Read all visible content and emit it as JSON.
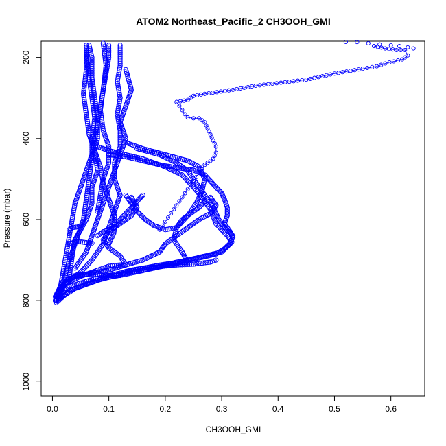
{
  "chart_data": {
    "type": "scatter",
    "title": "ATOM2 Northeast_Pacific_2 CH3OOH_GMI",
    "xlabel": "CH3OOH_GMI",
    "ylabel": "Pressure (mbar)",
    "xlim": [
      -0.02,
      0.66
    ],
    "ylim": [
      1035,
      160
    ],
    "y_reversed": true,
    "grid": false,
    "legend": "none",
    "marker": "open-circle",
    "color": "#0000ff",
    "x_ticks": [
      "0.0",
      "0.1",
      "0.2",
      "0.3",
      "0.4",
      "0.5",
      "0.6"
    ],
    "y_ticks": [
      "200",
      "400",
      "600",
      "800",
      "1000"
    ],
    "profiles": [
      {
        "points": [
          [
            0.005,
            800
          ],
          [
            0.03,
            740
          ],
          [
            0.035,
            690
          ],
          [
            0.04,
            650
          ],
          [
            0.06,
            600
          ],
          [
            0.07,
            560
          ],
          [
            0.07,
            520
          ],
          [
            0.08,
            480
          ],
          [
            0.075,
            430
          ],
          [
            0.08,
            400
          ],
          [
            0.08,
            350
          ],
          [
            0.075,
            300
          ],
          [
            0.07,
            250
          ],
          [
            0.07,
            200
          ],
          [
            0.065,
            170
          ]
        ]
      },
      {
        "points": [
          [
            0.005,
            790
          ],
          [
            0.02,
            750
          ],
          [
            0.03,
            700
          ],
          [
            0.045,
            640
          ],
          [
            0.055,
            600
          ],
          [
            0.06,
            550
          ],
          [
            0.065,
            500
          ],
          [
            0.07,
            450
          ],
          [
            0.07,
            400
          ],
          [
            0.075,
            350
          ],
          [
            0.07,
            300
          ],
          [
            0.065,
            250
          ],
          [
            0.06,
            200
          ],
          [
            0.06,
            170
          ]
        ]
      },
      {
        "points": [
          [
            0.006,
            795
          ],
          [
            0.015,
            760
          ],
          [
            0.02,
            720
          ],
          [
            0.025,
            680
          ],
          [
            0.03,
            640
          ],
          [
            0.035,
            600
          ],
          [
            0.04,
            560
          ],
          [
            0.05,
            520
          ],
          [
            0.06,
            480
          ],
          [
            0.07,
            440
          ],
          [
            0.075,
            400
          ],
          [
            0.08,
            360
          ],
          [
            0.085,
            320
          ],
          [
            0.09,
            280
          ],
          [
            0.095,
            240
          ],
          [
            0.1,
            200
          ],
          [
            0.1,
            170
          ]
        ]
      },
      {
        "points": [
          [
            0.006,
            800
          ],
          [
            0.02,
            760
          ],
          [
            0.05,
            730
          ],
          [
            0.07,
            700
          ],
          [
            0.09,
            660
          ],
          [
            0.1,
            620
          ],
          [
            0.11,
            580
          ],
          [
            0.12,
            540
          ],
          [
            0.11,
            500
          ],
          [
            0.11,
            460
          ],
          [
            0.12,
            420
          ],
          [
            0.12,
            380
          ],
          [
            0.115,
            340
          ],
          [
            0.12,
            300
          ],
          [
            0.115,
            260
          ],
          [
            0.12,
            220
          ],
          [
            0.12,
            170
          ]
        ]
      },
      {
        "points": [
          [
            0.007,
            805
          ],
          [
            0.03,
            775
          ],
          [
            0.06,
            760
          ],
          [
            0.09,
            745
          ],
          [
            0.13,
            735
          ],
          [
            0.18,
            720
          ],
          [
            0.22,
            705
          ],
          [
            0.26,
            695
          ],
          [
            0.29,
            685
          ],
          [
            0.305,
            672
          ],
          [
            0.318,
            655
          ],
          [
            0.31,
            640
          ],
          [
            0.29,
            610
          ],
          [
            0.28,
            575
          ],
          [
            0.265,
            545
          ],
          [
            0.25,
            520
          ],
          [
            0.23,
            490
          ],
          [
            0.2,
            470
          ],
          [
            0.16,
            450
          ],
          [
            0.13,
            440
          ],
          [
            0.1,
            430
          ],
          [
            0.08,
            420
          ]
        ]
      },
      {
        "points": [
          [
            0.007,
            800
          ],
          [
            0.04,
            770
          ],
          [
            0.08,
            750
          ],
          [
            0.12,
            735
          ],
          [
            0.17,
            722
          ],
          [
            0.21,
            712
          ],
          [
            0.24,
            700
          ],
          [
            0.27,
            690
          ],
          [
            0.3,
            680
          ],
          [
            0.315,
            660
          ],
          [
            0.32,
            640
          ],
          [
            0.305,
            620
          ],
          [
            0.295,
            600
          ],
          [
            0.285,
            570
          ],
          [
            0.27,
            540
          ],
          [
            0.255,
            510
          ],
          [
            0.24,
            480
          ],
          [
            0.22,
            460
          ],
          [
            0.19,
            440
          ],
          [
            0.15,
            425
          ]
        ]
      },
      {
        "points": [
          [
            0.006,
            795
          ],
          [
            0.03,
            765
          ],
          [
            0.07,
            748
          ],
          [
            0.12,
            732
          ],
          [
            0.16,
            720
          ],
          [
            0.2,
            710
          ],
          [
            0.24,
            705
          ],
          [
            0.23,
            680
          ],
          [
            0.215,
            650
          ],
          [
            0.22,
            620
          ],
          [
            0.24,
            590
          ],
          [
            0.255,
            560
          ],
          [
            0.265,
            530
          ],
          [
            0.27,
            500
          ],
          [
            0.26,
            470
          ],
          [
            0.24,
            455
          ],
          [
            0.2,
            440
          ],
          [
            0.16,
            425
          ],
          [
            0.13,
            410
          ]
        ]
      },
      {
        "points": [
          [
            0.006,
            790
          ],
          [
            0.02,
            760
          ],
          [
            0.05,
            740
          ],
          [
            0.08,
            725
          ],
          [
            0.1,
            715
          ],
          [
            0.12,
            712
          ],
          [
            0.13,
            712
          ],
          [
            0.12,
            690
          ],
          [
            0.1,
            670
          ],
          [
            0.09,
            650
          ],
          [
            0.1,
            630
          ],
          [
            0.12,
            610
          ],
          [
            0.14,
            590
          ],
          [
            0.15,
            570
          ],
          [
            0.14,
            545
          ]
        ]
      },
      {
        "points": [
          [
            0.006,
            790
          ],
          [
            0.03,
            745
          ],
          [
            0.06,
            735
          ],
          [
            0.1,
            725
          ],
          [
            0.13,
            712
          ],
          [
            0.16,
            700
          ],
          [
            0.19,
            680
          ],
          [
            0.2,
            660
          ],
          [
            0.22,
            640
          ],
          [
            0.24,
            620
          ],
          [
            0.26,
            600
          ],
          [
            0.28,
            585
          ],
          [
            0.29,
            565
          ],
          [
            0.28,
            545
          ]
        ]
      },
      {
        "points": [
          [
            0.005,
            800
          ],
          [
            0.03,
            740
          ],
          [
            0.05,
            737
          ],
          [
            0.06,
            736
          ],
          [
            0.08,
            736
          ],
          [
            0.1,
            738
          ],
          [
            0.12,
            738
          ],
          [
            0.13,
            728
          ],
          [
            0.15,
            722
          ],
          [
            0.19,
            716
          ],
          [
            0.22,
            712
          ],
          [
            0.25,
            710
          ],
          [
            0.28,
            705
          ],
          [
            0.29,
            700
          ]
        ]
      },
      {
        "points": [
          [
            0.1,
            440
          ],
          [
            0.13,
            445
          ],
          [
            0.16,
            455
          ],
          [
            0.19,
            465
          ],
          [
            0.22,
            472
          ],
          [
            0.25,
            478
          ],
          [
            0.27,
            490
          ],
          [
            0.28,
            505
          ],
          [
            0.29,
            520
          ],
          [
            0.3,
            535
          ],
          [
            0.305,
            550
          ],
          [
            0.31,
            570
          ],
          [
            0.31,
            590
          ],
          [
            0.305,
            610
          ],
          [
            0.315,
            630
          ],
          [
            0.32,
            645
          ]
        ]
      },
      {
        "points": [
          [
            0.13,
            540
          ],
          [
            0.14,
            560
          ],
          [
            0.15,
            580
          ],
          [
            0.165,
            600
          ],
          [
            0.18,
            615
          ],
          [
            0.2,
            625
          ],
          [
            0.22,
            620
          ],
          [
            0.23,
            600
          ],
          [
            0.24,
            590
          ],
          [
            0.25,
            580
          ],
          [
            0.26,
            570
          ],
          [
            0.27,
            555
          ]
        ]
      },
      {
        "points": [
          [
            0.08,
            640
          ],
          [
            0.09,
            630
          ],
          [
            0.11,
            620
          ],
          [
            0.12,
            600
          ],
          [
            0.13,
            585
          ],
          [
            0.14,
            570
          ],
          [
            0.15,
            555
          ],
          [
            0.16,
            540
          ]
        ]
      },
      {
        "points": [
          [
            0.13,
            230
          ],
          [
            0.14,
            280
          ],
          [
            0.13,
            320
          ],
          [
            0.12,
            360
          ],
          [
            0.13,
            400
          ],
          [
            0.12,
            440
          ],
          [
            0.11,
            480
          ],
          [
            0.1,
            520
          ],
          [
            0.09,
            560
          ],
          [
            0.08,
            600
          ],
          [
            0.07,
            640
          ],
          [
            0.06,
            680
          ],
          [
            0.04,
            720
          ]
        ]
      },
      {
        "points": [
          [
            0.09,
            165
          ],
          [
            0.095,
            220
          ],
          [
            0.09,
            280
          ],
          [
            0.085,
            330
          ],
          [
            0.09,
            380
          ],
          [
            0.1,
            420
          ],
          [
            0.1,
            460
          ],
          [
            0.09,
            500
          ],
          [
            0.085,
            540
          ],
          [
            0.08,
            580
          ]
        ]
      },
      {
        "points": [
          [
            0.06,
            175
          ],
          [
            0.06,
            230
          ],
          [
            0.055,
            290
          ],
          [
            0.06,
            340
          ],
          [
            0.065,
            390
          ],
          [
            0.075,
            430
          ],
          [
            0.085,
            470
          ],
          [
            0.09,
            510
          ],
          [
            0.1,
            550
          ],
          [
            0.11,
            590
          ],
          [
            0.11,
            630
          ],
          [
            0.1,
            660
          ]
        ]
      },
      {
        "points": [
          [
            0.03,
            660
          ],
          [
            0.04,
            655
          ],
          [
            0.05,
            655
          ],
          [
            0.06,
            657
          ],
          [
            0.07,
            658
          ]
        ]
      },
      {
        "points": [
          [
            0.03,
            625
          ],
          [
            0.035,
            620
          ],
          [
            0.045,
            618
          ],
          [
            0.05,
            615
          ]
        ]
      },
      {
        "points": [
          [
            0.005,
            800
          ],
          [
            0.01,
            795
          ],
          [
            0.015,
            790
          ],
          [
            0.02,
            780
          ]
        ]
      }
    ],
    "upper_branch": {
      "line_connected": true,
      "points": [
        [
          0.57,
          172
        ],
        [
          0.59,
          178
        ],
        [
          0.61,
          182
        ],
        [
          0.625,
          182
        ],
        [
          0.63,
          195
        ],
        [
          0.62,
          205
        ],
        [
          0.59,
          215
        ],
        [
          0.575,
          222
        ],
        [
          0.55,
          228
        ],
        [
          0.5,
          240
        ],
        [
          0.45,
          255
        ],
        [
          0.36,
          270
        ],
        [
          0.32,
          280
        ],
        [
          0.27,
          290
        ],
        [
          0.25,
          295
        ],
        [
          0.24,
          305
        ],
        [
          0.22,
          310
        ],
        [
          0.225,
          320
        ],
        [
          0.23,
          330
        ],
        [
          0.235,
          340
        ],
        [
          0.24,
          348
        ],
        [
          0.25,
          350
        ],
        [
          0.26,
          350
        ],
        [
          0.27,
          360
        ],
        [
          0.275,
          375
        ],
        [
          0.28,
          390
        ],
        [
          0.285,
          405
        ],
        [
          0.29,
          420
        ],
        [
          0.29,
          435
        ],
        [
          0.285,
          450
        ],
        [
          0.27,
          465
        ],
        [
          0.26,
          485
        ],
        [
          0.25,
          505
        ],
        [
          0.24,
          525
        ],
        [
          0.23,
          545
        ],
        [
          0.22,
          565
        ],
        [
          0.21,
          585
        ],
        [
          0.2,
          605
        ],
        [
          0.19,
          625
        ]
      ],
      "top_points": [
        [
          0.52,
          160
        ],
        [
          0.54,
          162
        ],
        [
          0.56,
          165
        ],
        [
          0.58,
          168
        ],
        [
          0.6,
          170
        ],
        [
          0.615,
          172
        ],
        [
          0.63,
          175
        ],
        [
          0.64,
          178
        ]
      ]
    }
  }
}
